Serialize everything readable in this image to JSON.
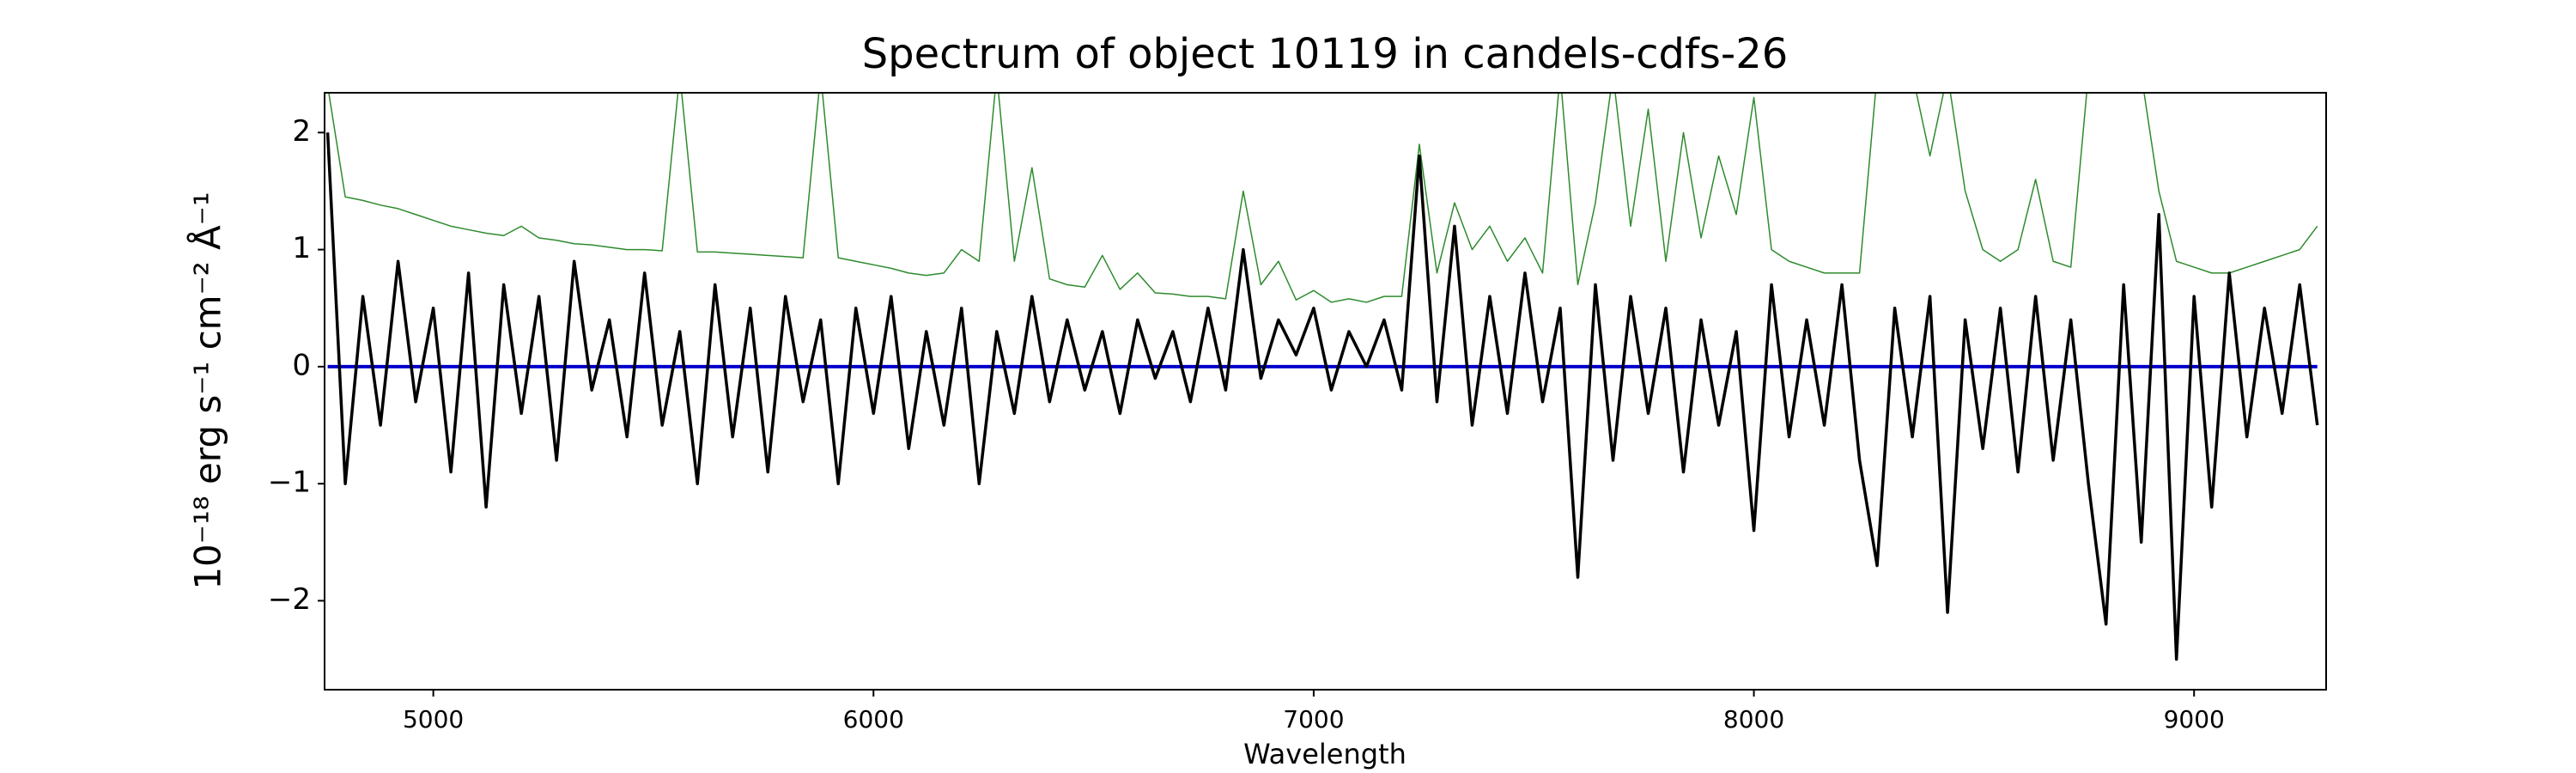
{
  "chart_data": {
    "type": "line",
    "title": "Spectrum of object 10119 in candels-cdfs-26",
    "x_label": "Wavelength",
    "y_label": "10⁻¹⁸ erg s⁻¹ cm⁻² Å⁻¹",
    "xlim": [
      4753,
      9300
    ],
    "ylim": [
      -2.76,
      2.34
    ],
    "xticks": [
      5000,
      6000,
      7000,
      8000,
      9000
    ],
    "yticks": [
      {
        "value": -2,
        "label": "−2"
      },
      {
        "value": -1,
        "label": "−1"
      },
      0,
      1,
      2
    ],
    "grid": false,
    "x": [
      4760,
      4800,
      4840,
      4880,
      4920,
      4960,
      5000,
      5040,
      5080,
      5120,
      5160,
      5200,
      5240,
      5280,
      5320,
      5360,
      5400,
      5440,
      5480,
      5520,
      5560,
      5600,
      5640,
      5680,
      5720,
      5760,
      5800,
      5840,
      5880,
      5920,
      5960,
      6000,
      6040,
      6080,
      6120,
      6160,
      6200,
      6240,
      6280,
      6320,
      6360,
      6400,
      6440,
      6480,
      6520,
      6560,
      6600,
      6640,
      6680,
      6720,
      6760,
      6800,
      6840,
      6880,
      6920,
      6960,
      7000,
      7040,
      7080,
      7120,
      7160,
      7200,
      7240,
      7280,
      7320,
      7360,
      7400,
      7440,
      7480,
      7520,
      7560,
      7600,
      7640,
      7680,
      7720,
      7760,
      7800,
      7840,
      7880,
      7920,
      7960,
      8000,
      8040,
      8080,
      8120,
      8160,
      8200,
      8240,
      8280,
      8320,
      8360,
      8400,
      8440,
      8480,
      8520,
      8560,
      8600,
      8640,
      8680,
      8720,
      8760,
      8800,
      8840,
      8880,
      8920,
      8960,
      9000,
      9040,
      9080,
      9120,
      9160,
      9200,
      9240,
      9280
    ],
    "series": [
      {
        "color": "#2e8b2e",
        "width": 1.5,
        "values": [
          2.4,
          1.45,
          1.42,
          1.38,
          1.35,
          1.3,
          1.25,
          1.2,
          1.17,
          1.14,
          1.12,
          1.2,
          1.1,
          1.08,
          1.05,
          1.04,
          1.02,
          1.0,
          1.0,
          0.99,
          2.5,
          0.98,
          0.98,
          0.97,
          0.96,
          0.95,
          0.94,
          0.93,
          2.5,
          0.93,
          0.9,
          0.87,
          0.84,
          0.8,
          0.78,
          0.8,
          1.0,
          0.9,
          2.5,
          0.9,
          1.7,
          0.75,
          0.7,
          0.68,
          0.95,
          0.66,
          0.8,
          0.63,
          0.62,
          0.6,
          0.6,
          0.58,
          1.5,
          0.7,
          0.9,
          0.57,
          0.65,
          0.55,
          0.58,
          0.55,
          0.6,
          0.6,
          1.9,
          0.8,
          1.4,
          1.0,
          1.2,
          0.9,
          1.1,
          0.8,
          2.5,
          0.7,
          1.4,
          2.5,
          1.2,
          2.2,
          0.9,
          2.0,
          1.1,
          1.8,
          1.3,
          2.3,
          1.0,
          0.9,
          0.85,
          0.8,
          0.8,
          0.8,
          2.5,
          2.5,
          2.5,
          1.8,
          2.5,
          1.5,
          1.0,
          0.9,
          1.0,
          1.6,
          0.9,
          0.85,
          2.5,
          2.5,
          2.5,
          2.5,
          1.5,
          0.9,
          0.85,
          0.8,
          0.8,
          0.85,
          0.9,
          0.95,
          1.0,
          1.2
        ]
      },
      {
        "color": "#0000cc",
        "width": 4,
        "values": [
          0,
          0,
          0,
          0,
          0,
          0,
          0,
          0,
          0,
          0,
          0,
          0,
          0,
          0,
          0,
          0,
          0,
          0,
          0,
          0,
          0,
          0,
          0,
          0,
          0,
          0,
          0,
          0,
          0,
          0,
          0,
          0,
          0,
          0,
          0,
          0,
          0,
          0,
          0,
          0,
          0,
          0,
          0,
          0,
          0,
          0,
          0,
          0,
          0,
          0,
          0,
          0,
          0,
          0,
          0,
          0,
          0,
          0,
          0,
          0,
          0,
          0,
          0,
          0,
          0,
          0,
          0,
          0,
          0,
          0,
          0,
          0,
          0,
          0,
          0,
          0,
          0,
          0,
          0,
          0,
          0,
          0,
          0,
          0,
          0,
          0,
          0,
          0,
          0,
          0,
          0,
          0,
          0,
          0,
          0,
          0,
          0,
          0,
          0,
          0,
          0,
          0,
          0,
          0,
          0,
          0,
          0,
          0,
          0,
          0,
          0,
          0,
          0,
          0
        ]
      },
      {
        "color": "#000000",
        "width": 3.5,
        "values": [
          2.0,
          -1.0,
          0.6,
          -0.5,
          0.9,
          -0.3,
          0.5,
          -0.9,
          0.8,
          -1.2,
          0.7,
          -0.4,
          0.6,
          -0.8,
          0.9,
          -0.2,
          0.4,
          -0.6,
          0.8,
          -0.5,
          0.3,
          -1.0,
          0.7,
          -0.6,
          0.5,
          -0.9,
          0.6,
          -0.3,
          0.4,
          -1.0,
          0.5,
          -0.4,
          0.6,
          -0.7,
          0.3,
          -0.5,
          0.5,
          -1.0,
          0.3,
          -0.4,
          0.6,
          -0.3,
          0.4,
          -0.2,
          0.3,
          -0.4,
          0.4,
          -0.1,
          0.3,
          -0.3,
          0.5,
          -0.2,
          1.0,
          -0.1,
          0.4,
          0.1,
          0.5,
          -0.2,
          0.3,
          0.0,
          0.4,
          -0.2,
          1.8,
          -0.3,
          1.2,
          -0.5,
          0.6,
          -0.4,
          0.8,
          -0.3,
          0.5,
          -1.8,
          0.7,
          -0.8,
          0.6,
          -0.4,
          0.5,
          -0.9,
          0.4,
          -0.5,
          0.3,
          -1.4,
          0.7,
          -0.6,
          0.4,
          -0.5,
          0.7,
          -0.8,
          -1.7,
          0.5,
          -0.6,
          0.6,
          -2.1,
          0.4,
          -0.7,
          0.5,
          -0.9,
          0.6,
          -0.8,
          0.4,
          -1.0,
          -2.2,
          0.7,
          -1.5,
          1.3,
          -2.5,
          0.6,
          -1.2,
          0.8,
          -0.6,
          0.5,
          -0.4,
          0.7,
          -0.5
        ]
      }
    ]
  }
}
